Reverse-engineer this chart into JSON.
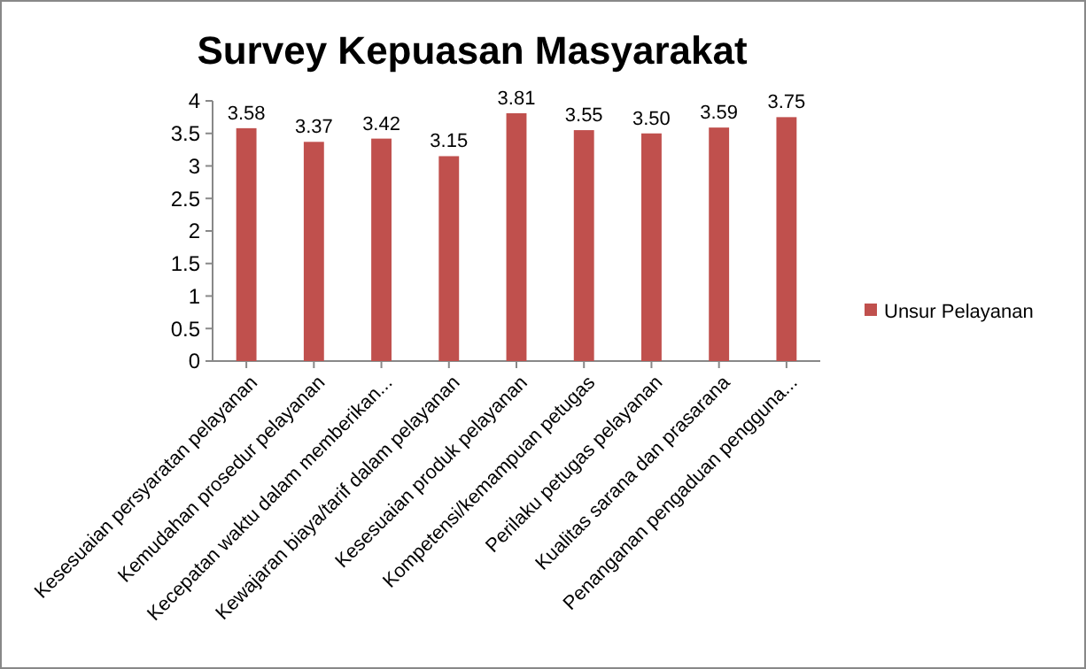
{
  "chart_data": {
    "type": "bar",
    "title": "Survey Kepuasan Masyarakat",
    "categories": [
      "Kesesuaian persyaratan pelayanan",
      "Kemudahan prosedur pelayanan",
      "Kecepatan waktu dalam memberikan...",
      "Kewajaran biaya/tarif dalam pelayanan",
      "Kesesuaian produk pelayanan",
      "Kompetensi/kemampuan petugas",
      "Perilaku petugas pelayanan",
      "Kualitas sarana dan prasarana",
      "Penanganan pengaduan pengguna..."
    ],
    "series": [
      {
        "name": "Unsur Pelayanan",
        "color": "#c0504d",
        "values": [
          3.58,
          3.37,
          3.42,
          3.15,
          3.81,
          3.55,
          3.5,
          3.59,
          3.75
        ],
        "value_labels": [
          "3.58",
          "3.37",
          "3.42",
          "3.15",
          "3.81",
          "3.55",
          "3.50",
          "3.59",
          "3.75"
        ]
      }
    ],
    "ylim": [
      0,
      4
    ],
    "yticks": [
      0,
      0.5,
      1,
      1.5,
      2,
      2.5,
      3,
      3.5,
      4
    ],
    "legend": "right"
  }
}
